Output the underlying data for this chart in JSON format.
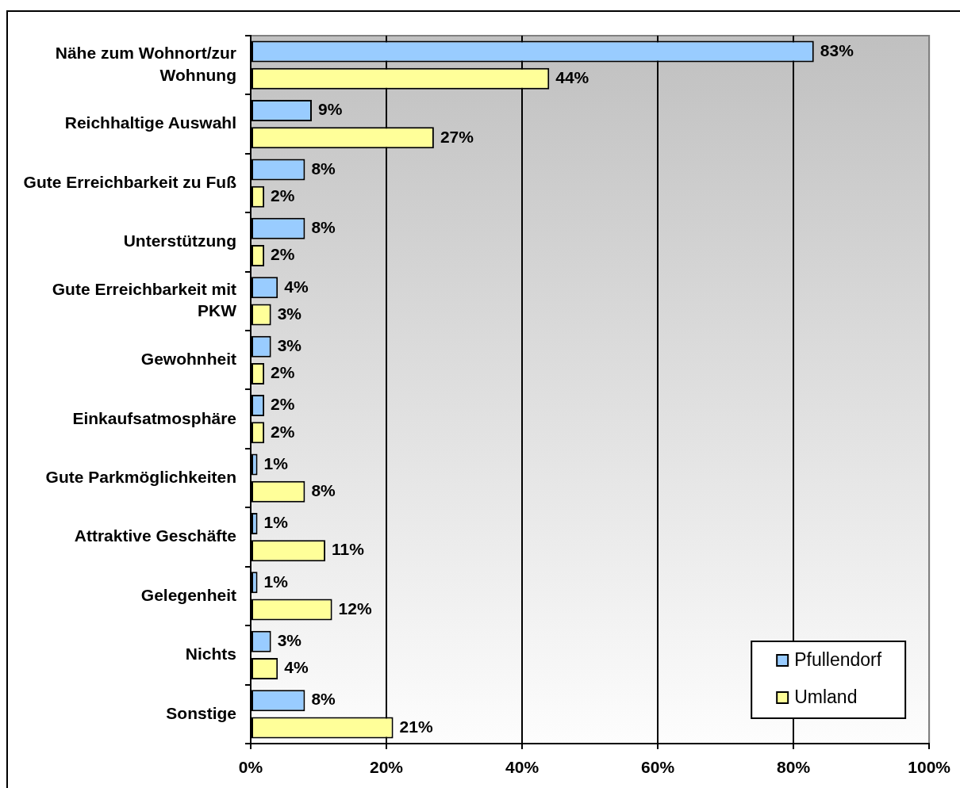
{
  "chart_data": {
    "type": "bar",
    "orientation": "horizontal",
    "categories": [
      "Nähe zum Wohnort/zur Wohnung",
      "Reichhaltige Auswahl",
      "Gute Erreichbarkeit zu Fuß",
      "Unterstützung",
      "Gute Erreichbarkeit mit PKW",
      "Gewohnheit",
      "Einkaufsatmosphäre",
      "Gute Parkmöglichkeiten",
      "Attraktive Geschäfte",
      "Gelegenheit",
      "Nichts",
      "Sonstige"
    ],
    "series": [
      {
        "name": "Pfullendorf",
        "color": "#99ccff",
        "values": [
          83,
          9,
          8,
          8,
          4,
          3,
          2,
          1,
          1,
          1,
          3,
          8
        ],
        "value_labels": [
          "83%",
          "9%",
          "8%",
          "8%",
          "4%",
          "3%",
          "2%",
          "1%",
          "1%",
          "1%",
          "3%",
          "8%"
        ]
      },
      {
        "name": "Umland",
        "color": "#ffff99",
        "values": [
          44,
          27,
          2,
          2,
          3,
          2,
          2,
          8,
          11,
          12,
          4,
          21
        ],
        "value_labels": [
          "44%",
          "27%",
          "2%",
          "2%",
          "3%",
          "2%",
          "2%",
          "8%",
          "11%",
          "12%",
          "4%",
          "21%"
        ]
      }
    ],
    "xlim": [
      0,
      100
    ],
    "xticks": [
      {
        "value": 0,
        "label": "0%"
      },
      {
        "value": 20,
        "label": "20%"
      },
      {
        "value": 40,
        "label": "40%"
      },
      {
        "value": 60,
        "label": "60%"
      },
      {
        "value": 80,
        "label": "80%"
      },
      {
        "value": 100,
        "label": "100%"
      }
    ],
    "grid": "x",
    "legend": "bottom right"
  }
}
